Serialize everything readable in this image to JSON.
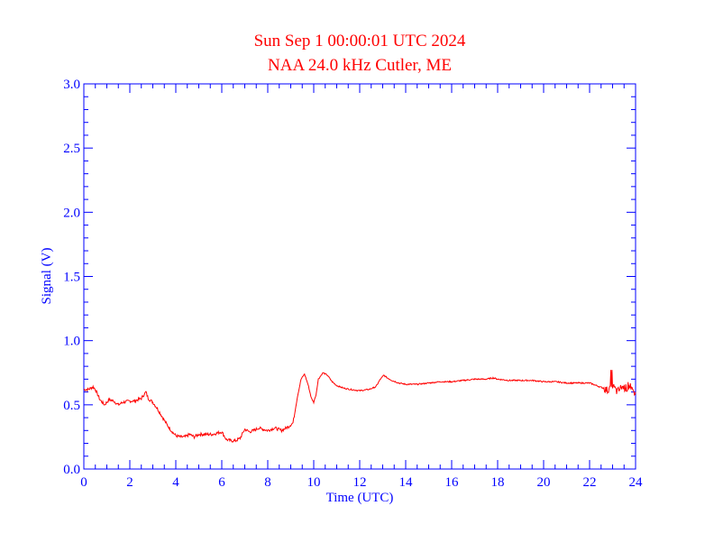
{
  "chart_data": {
    "type": "line",
    "title": "Sun Sep 1 00:00:01 UTC 2024",
    "subtitle": "NAA 24.0 kHz Cutler, ME",
    "xlabel": "Time (UTC)",
    "ylabel": "Signal (V)",
    "xlim": [
      0,
      24
    ],
    "ylim": [
      0,
      3.0
    ],
    "x_ticks": [
      "0",
      "2",
      "4",
      "6",
      "8",
      "10",
      "12",
      "14",
      "16",
      "18",
      "20",
      "22",
      "24"
    ],
    "y_ticks": [
      "0.0",
      "0.5",
      "1.0",
      "1.5",
      "2.0",
      "2.5",
      "3.0"
    ],
    "grid": false,
    "colors": {
      "axes": "#0000ff",
      "series": "#ff0000",
      "title": "#ff0000"
    },
    "series": [
      {
        "x": [
          0.0,
          0.2,
          0.4,
          0.5,
          0.7,
          0.9,
          1.1,
          1.3,
          1.5,
          1.7,
          2.0,
          2.2,
          2.5,
          2.7,
          2.8,
          3.0,
          3.2,
          3.4,
          3.6,
          3.8,
          4.0,
          4.2,
          4.4,
          4.6,
          4.8,
          5.0,
          5.3,
          5.6,
          6.0,
          6.2,
          6.4,
          6.6,
          6.8,
          7.0,
          7.2,
          7.4,
          7.6,
          7.8,
          8.0,
          8.3,
          8.6,
          8.9,
          9.1,
          9.3,
          9.45,
          9.6,
          9.75,
          9.9,
          10.0,
          10.1,
          10.2,
          10.4,
          10.6,
          10.8,
          11.0,
          11.3,
          11.6,
          12.0,
          12.4,
          12.7,
          12.9,
          13.05,
          13.2,
          13.4,
          13.7,
          14.0,
          14.5,
          15.0,
          15.5,
          16.0,
          16.5,
          17.0,
          17.5,
          17.8,
          18.0,
          18.5,
          19.0,
          19.5,
          20.0,
          20.5,
          21.0,
          21.5,
          22.0,
          22.3,
          22.6,
          22.8,
          23.0,
          23.2,
          23.4,
          23.6,
          23.8,
          24.0
        ],
        "y": [
          0.62,
          0.62,
          0.64,
          0.62,
          0.54,
          0.5,
          0.54,
          0.53,
          0.5,
          0.52,
          0.53,
          0.53,
          0.55,
          0.6,
          0.55,
          0.52,
          0.47,
          0.41,
          0.35,
          0.3,
          0.26,
          0.25,
          0.25,
          0.27,
          0.25,
          0.27,
          0.27,
          0.27,
          0.29,
          0.23,
          0.22,
          0.22,
          0.24,
          0.31,
          0.29,
          0.3,
          0.32,
          0.31,
          0.3,
          0.32,
          0.3,
          0.33,
          0.36,
          0.57,
          0.7,
          0.74,
          0.66,
          0.55,
          0.52,
          0.58,
          0.7,
          0.75,
          0.73,
          0.68,
          0.65,
          0.63,
          0.62,
          0.61,
          0.62,
          0.64,
          0.7,
          0.73,
          0.71,
          0.69,
          0.67,
          0.66,
          0.66,
          0.67,
          0.68,
          0.68,
          0.69,
          0.7,
          0.7,
          0.71,
          0.7,
          0.69,
          0.69,
          0.69,
          0.68,
          0.68,
          0.67,
          0.67,
          0.67,
          0.65,
          0.63,
          0.61,
          0.65,
          0.6,
          0.64,
          0.63,
          0.61,
          0.6
        ]
      }
    ]
  }
}
